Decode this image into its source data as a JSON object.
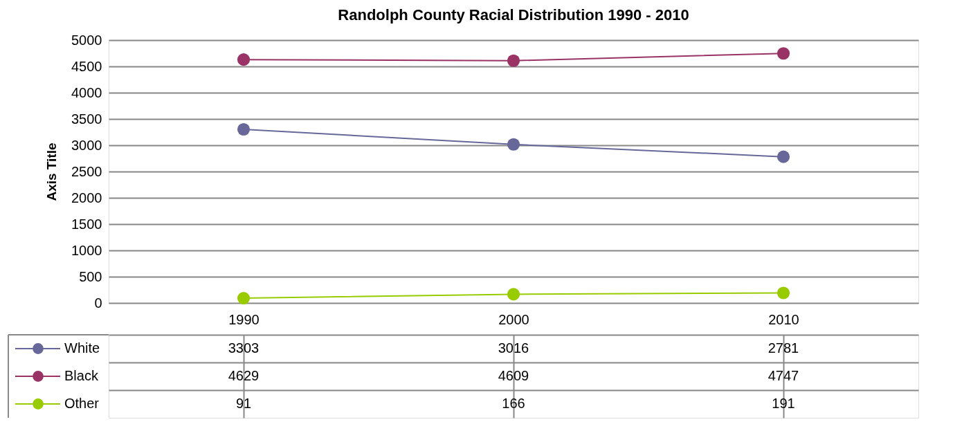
{
  "chart_data": {
    "type": "line",
    "title": "Randolph County Racial Distribution 1990 - 2010",
    "ylabel": "Axis Title",
    "categories": [
      "1990",
      "2000",
      "2010"
    ],
    "series": [
      {
        "name": "White",
        "color": "#676799",
        "values": [
          3303,
          3016,
          2781
        ]
      },
      {
        "name": "Black",
        "color": "#993366",
        "values": [
          4629,
          4609,
          4747
        ]
      },
      {
        "name": "Other",
        "color": "#99cc00",
        "values": [
          91,
          166,
          191
        ]
      }
    ],
    "ylim": [
      0,
      5000
    ],
    "yticks": [
      0,
      500,
      1000,
      1500,
      2000,
      2500,
      3000,
      3500,
      4000,
      4500,
      5000
    ],
    "grid": "y",
    "legend": "bottom left",
    "marker": "circle",
    "data_labels": true
  }
}
